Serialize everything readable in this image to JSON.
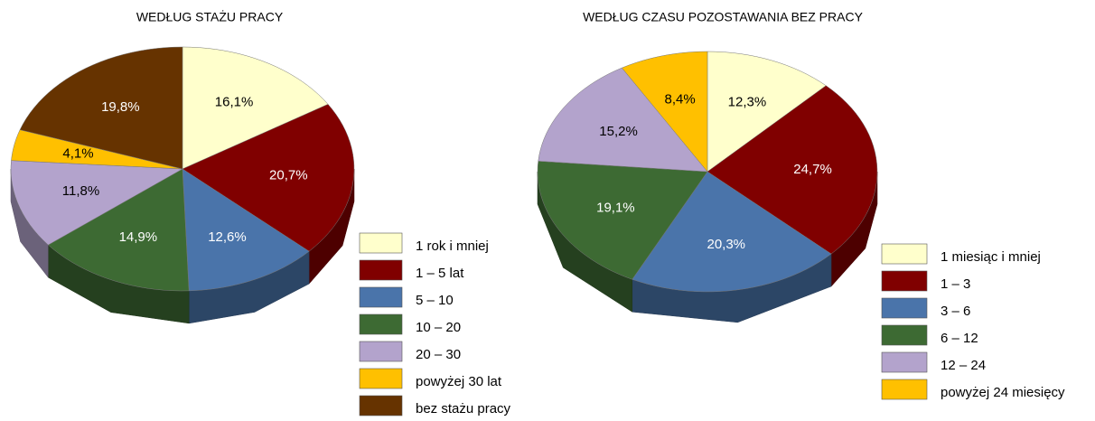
{
  "chart_data": [
    {
      "type": "pie",
      "title": "WEDŁUG STAŻU PRACY",
      "categories": [
        "1 rok i mniej",
        "1 – 5 lat",
        "5 – 10",
        "10 – 20",
        "20 – 30",
        "powyżej 30 lat",
        "bez stażu pracy"
      ],
      "values": [
        16.1,
        20.7,
        12.6,
        14.9,
        11.8,
        4.1,
        19.8
      ],
      "value_labels": [
        "16,1%",
        "20,7%",
        "12,6%",
        "14,9%",
        "11,8%",
        "4,1%",
        "19,8%"
      ],
      "colors": [
        "#ffffcc",
        "#800000",
        "#4a74aa",
        "#3d6a33",
        "#b3a3cc",
        "#ffc000",
        "#663300"
      ]
    },
    {
      "type": "pie",
      "title": "WEDŁUG CZASU POZOSTAWANIA BEZ PRACY",
      "categories": [
        "1 miesiąc i mniej",
        "1 – 3",
        "3 – 6",
        "6 – 12",
        "12 – 24",
        "powyżej 24 miesięcy"
      ],
      "values": [
        12.3,
        24.7,
        20.3,
        19.1,
        15.2,
        8.4
      ],
      "value_labels": [
        "12,3%",
        "24,7%",
        "20,3%",
        "19,1%",
        "15,2%",
        "8,4%"
      ],
      "colors": [
        "#ffffcc",
        "#800000",
        "#4a74aa",
        "#3d6a33",
        "#b3a3cc",
        "#ffc000"
      ]
    }
  ]
}
